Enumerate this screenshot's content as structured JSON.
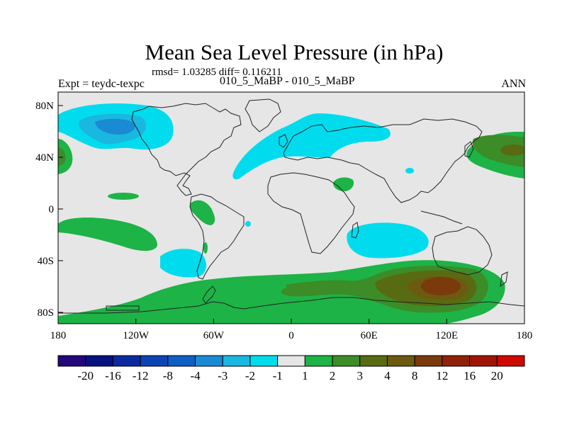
{
  "title": "Mean Sea Level Pressure (in hPa)",
  "stats": "rmsd= 1.03285 diff= 0.116211",
  "expt": "Expt = teydc-texpc",
  "comparison": "010_5_MaBP - 010_5_MaBP",
  "season": "ANN",
  "lat_labels": [
    "80N",
    "40N",
    "0",
    "40S",
    "80S"
  ],
  "lon_labels": [
    "180",
    "120W",
    "60W",
    "0",
    "60E",
    "120E",
    "180"
  ],
  "colorbar": {
    "labels": [
      "-20",
      "-16",
      "-12",
      "-8",
      "-4",
      "-3",
      "-2",
      "-1",
      "1",
      "2",
      "3",
      "4",
      "8",
      "12",
      "16",
      "20"
    ],
    "colors": [
      "#22087a",
      "#08127e",
      "#0a2a9e",
      "#0c44b4",
      "#0e5fc4",
      "#1a8ad2",
      "#1ab7e0",
      "#00dced",
      "#e6e6e6",
      "#1db346",
      "#3c8c28",
      "#596b12",
      "#6b5a10",
      "#7a3a0c",
      "#8f2208",
      "#a01405",
      "#cc0a00"
    ]
  },
  "colors": {
    "background": "#e6e6e6",
    "pos2": "#1db346",
    "pos3": "#3c8c28",
    "pos4": "#596b12",
    "pos8": "#6b5a10",
    "pos12": "#7a3a0c",
    "neg1": "#00dced",
    "neg2": "#1ab7e0",
    "neg3": "#1a8ad2"
  }
}
